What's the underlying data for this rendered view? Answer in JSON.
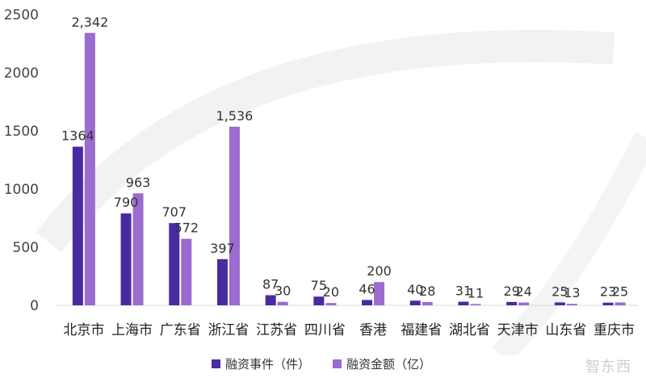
{
  "chart_data": {
    "type": "bar",
    "categories": [
      "北京市",
      "上海市",
      "广东省",
      "浙江省",
      "江苏省",
      "四川省",
      "香港",
      "福建省",
      "湖北省",
      "天津市",
      "山东省",
      "重庆市"
    ],
    "series": [
      {
        "name": "融资事件（件）",
        "values": [
          1364,
          790,
          707,
          397,
          87,
          75,
          46,
          40,
          31,
          29,
          25,
          23
        ],
        "labels": [
          "1364",
          "790",
          "707",
          "397",
          "87",
          "75",
          "46",
          "40",
          "31",
          "29",
          "25",
          "23"
        ],
        "color": "#4a2aa2"
      },
      {
        "name": "融资金额（亿）",
        "values": [
          2342,
          963,
          572,
          1536,
          30,
          20,
          200,
          28,
          11,
          24,
          13,
          25
        ],
        "labels": [
          "2,342",
          "963",
          "572",
          "1,536",
          "30",
          "20",
          "200",
          "28",
          "11",
          "24",
          "13",
          "25"
        ],
        "color": "#9b6bd0"
      }
    ],
    "ylim": [
      0,
      2500
    ],
    "yticks": [
      "0",
      "500",
      "1000",
      "1500",
      "2000",
      "2500"
    ],
    "grid": false,
    "legend_position": "bottom"
  },
  "watermark": "智东西"
}
